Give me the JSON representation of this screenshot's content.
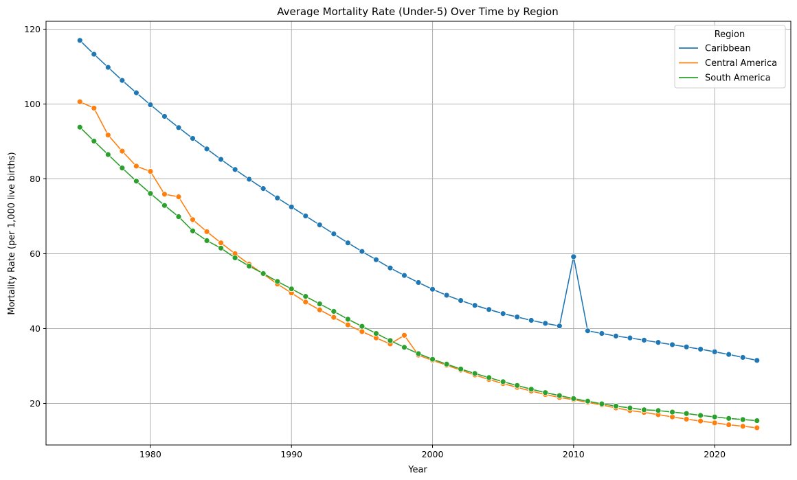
{
  "chart_data": {
    "type": "line",
    "title": "Average Mortality Rate (Under-5) Over Time by Region",
    "xlabel": "Year",
    "ylabel": "Mortality Rate (per 1,000 live births)",
    "xlim": [
      1967.6,
      1935.4
    ],
    "ylim": [
      8.9,
      122.1
    ],
    "xticks": [
      1980,
      1990,
      2000,
      2010,
      2020
    ],
    "yticks": [
      20,
      40,
      60,
      80,
      100,
      120
    ],
    "grid": true,
    "legend": {
      "title": "Region",
      "position": "top-right"
    },
    "x": [
      1975,
      1976,
      1977,
      1978,
      1979,
      1980,
      1981,
      1982,
      1983,
      1984,
      1985,
      1986,
      1987,
      1988,
      1989,
      1990,
      1991,
      1992,
      1993,
      1994,
      1995,
      1996,
      1997,
      1998,
      1999,
      2000,
      2001,
      2002,
      2003,
      2004,
      2005,
      2006,
      2007,
      2008,
      2009,
      2010,
      2011,
      2012,
      2013,
      2014,
      2015,
      2016,
      2017,
      2018,
      2019,
      2020,
      2021,
      2022,
      2023
    ],
    "series": [
      {
        "name": "Caribbean",
        "color": "#1f77b4",
        "values": [
          117.0,
          113.3,
          109.8,
          106.3,
          103.0,
          99.8,
          96.7,
          93.7,
          90.8,
          88.0,
          85.2,
          82.5,
          79.9,
          77.4,
          74.9,
          72.5,
          70.1,
          67.7,
          65.3,
          62.9,
          60.6,
          58.4,
          56.2,
          54.2,
          52.3,
          50.5,
          48.9,
          47.5,
          46.2,
          45.1,
          44.0,
          43.1,
          42.2,
          41.4,
          40.7,
          59.2,
          39.4,
          38.7,
          38.0,
          37.5,
          36.9,
          36.3,
          35.7,
          35.1,
          34.5,
          33.8,
          33.1,
          32.3,
          31.5
        ]
      },
      {
        "name": "Central America",
        "color": "#ff7f0e",
        "values": [
          100.6,
          98.9,
          91.7,
          87.4,
          83.4,
          82.0,
          75.9,
          75.2,
          69.1,
          65.9,
          62.9,
          60.0,
          57.2,
          54.6,
          51.9,
          49.5,
          47.1,
          45.0,
          43.0,
          41.0,
          39.2,
          37.5,
          35.9,
          38.2,
          32.9,
          31.5,
          30.2,
          28.9,
          27.6,
          26.4,
          25.3,
          24.3,
          23.3,
          22.4,
          21.6,
          21.0,
          20.3,
          19.6,
          18.8,
          18.1,
          17.6,
          17.0,
          16.4,
          15.8,
          15.3,
          14.8,
          14.3,
          13.9,
          13.5
        ]
      },
      {
        "name": "South America",
        "color": "#2ca02c",
        "values": [
          93.8,
          90.1,
          86.5,
          82.9,
          79.4,
          76.1,
          72.9,
          69.9,
          66.1,
          63.5,
          61.5,
          58.9,
          56.7,
          54.7,
          52.6,
          50.6,
          48.6,
          46.6,
          44.6,
          42.5,
          40.6,
          38.7,
          36.8,
          35.0,
          33.3,
          31.8,
          30.5,
          29.2,
          28.0,
          26.9,
          25.8,
          24.8,
          23.8,
          22.9,
          22.1,
          21.3,
          20.6,
          19.9,
          19.3,
          18.8,
          18.3,
          18.1,
          17.7,
          17.3,
          16.8,
          16.4,
          16.0,
          15.7,
          15.4
        ]
      }
    ]
  }
}
